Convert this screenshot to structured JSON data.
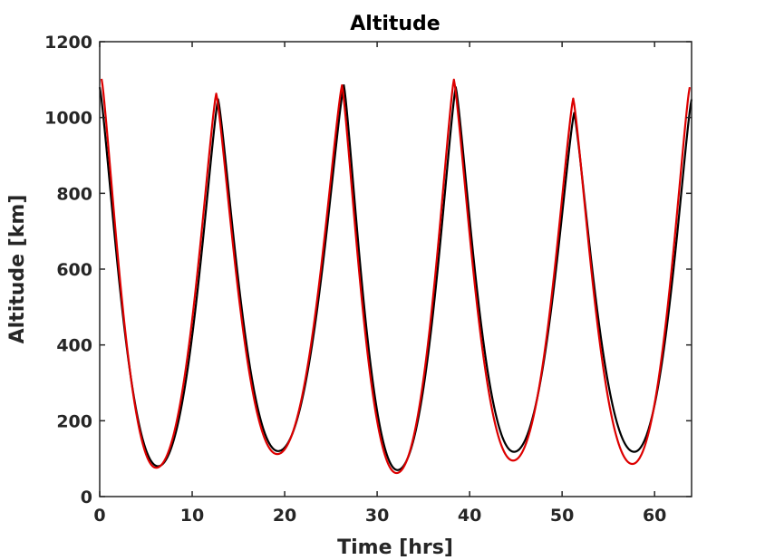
{
  "chart_data": {
    "type": "line",
    "title": "Altitude",
    "xlabel": "Time [hrs]",
    "ylabel": "Altitude [km]",
    "xlim": [
      0,
      64
    ],
    "ylim": [
      0,
      1200
    ],
    "xticks": [
      0,
      10,
      20,
      30,
      40,
      50,
      60
    ],
    "yticks": [
      0,
      200,
      400,
      600,
      800,
      1000,
      1200
    ],
    "grid": false,
    "legend": "none",
    "series": [
      {
        "color": "#000000",
        "extrema": [
          [
            0,
            1080
          ],
          [
            6.3,
            80
          ],
          [
            12.8,
            1048
          ],
          [
            19.3,
            120
          ],
          [
            26.4,
            1085
          ],
          [
            32.2,
            70
          ],
          [
            38.5,
            1080
          ],
          [
            44.8,
            118
          ],
          [
            51.3,
            1012
          ],
          [
            57.8,
            118
          ],
          [
            64,
            1048
          ]
        ]
      },
      {
        "color": "#dd0000",
        "extrema": [
          [
            0.2,
            1102
          ],
          [
            6.1,
            76
          ],
          [
            12.6,
            1063
          ],
          [
            19.2,
            112
          ],
          [
            26.2,
            1085
          ],
          [
            32.1,
            62
          ],
          [
            38.3,
            1100
          ],
          [
            44.7,
            95
          ],
          [
            51.2,
            1050
          ],
          [
            57.6,
            86
          ],
          [
            63.8,
            1080
          ]
        ]
      }
    ]
  }
}
